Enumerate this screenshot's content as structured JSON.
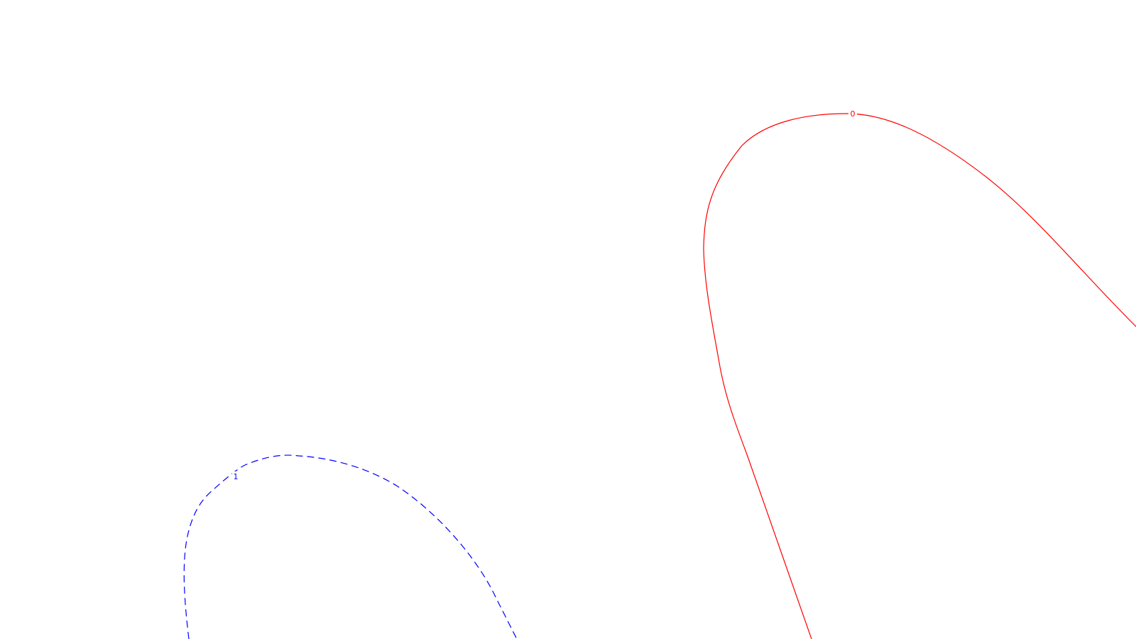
{
  "contours": [
    {
      "label": "0",
      "color": "#ff0000",
      "line_style": "solid"
    },
    {
      "label": "1",
      "color": "#0000ff",
      "line_style": "dashed"
    }
  ]
}
